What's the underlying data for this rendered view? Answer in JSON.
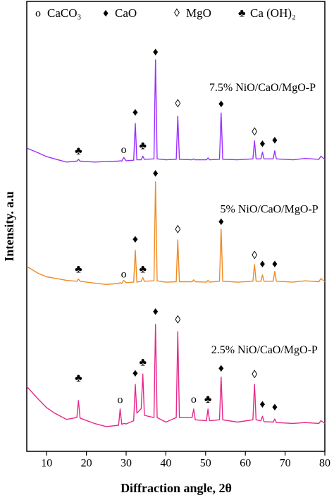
{
  "chart_data": {
    "type": "line",
    "xlabel": "Diffraction angle, 2θ",
    "ylabel": "Intensity. a.u",
    "xlim": [
      5,
      80
    ],
    "xticks": [
      10,
      20,
      30,
      40,
      50,
      60,
      70,
      80
    ],
    "ylim": [
      0,
      100
    ],
    "legend": [
      {
        "symbol": "o",
        "label": "CaCO₃"
      },
      {
        "symbol": "♦",
        "label": "CaO"
      },
      {
        "symbol": "◊",
        "label": "MgO"
      },
      {
        "symbol": "♣",
        "label": "Ca (OH)₂"
      }
    ],
    "x": [
      5,
      8,
      10,
      12,
      15,
      17.6,
      18,
      18.4,
      22,
      25,
      28.1,
      28.5,
      28.9,
      29.4,
      30,
      31.9,
      32.3,
      32.7,
      33.8,
      34.2,
      34.6,
      37.0,
      37.4,
      37.8,
      40,
      42.6,
      43,
      43.4,
      46.6,
      47,
      47.4,
      50.2,
      50.6,
      51,
      53.5,
      53.9,
      54.3,
      58,
      61.9,
      62.3,
      62.7,
      63.9,
      64.3,
      64.7,
      67.0,
      67.4,
      67.8,
      72,
      75,
      78.5,
      79,
      80
    ],
    "series": [
      {
        "name": "7.5% NiO/CaO/MgO-P",
        "color": "#9b30ff",
        "label_at": [
          64.3,
          80.7
        ],
        "values": [
          67.4,
          66.3,
          65.5,
          65.0,
          64.3,
          64.5,
          64.9,
          64.5,
          64.3,
          64.4,
          64.5,
          64.6,
          64.5,
          65.3,
          64.6,
          64.7,
          72.9,
          64.8,
          64.8,
          65.6,
          64.9,
          65.0,
          87.0,
          65.0,
          64.8,
          64.9,
          74.5,
          64.9,
          64.8,
          65.0,
          64.8,
          64.8,
          65.2,
          64.8,
          64.9,
          75.2,
          64.9,
          64.8,
          65.0,
          69.0,
          65.0,
          65.0,
          66.5,
          65.0,
          65.0,
          66.8,
          65.0,
          64.8,
          65.1,
          64.9,
          65.6,
          64.9
        ]
      },
      {
        "name": "5% NiO/CaO/MgO-P",
        "color": "#f08a24",
        "label_at": [
          66,
          53.6
        ],
        "values": [
          41.1,
          39.5,
          38.8,
          38.5,
          38.0,
          37.8,
          38.3,
          37.8,
          37.4,
          37.1,
          37.3,
          37.5,
          37.3,
          38.0,
          37.5,
          37.6,
          44.7,
          37.6,
          37.8,
          38.6,
          37.8,
          37.9,
          59.9,
          37.9,
          37.6,
          37.7,
          47.0,
          37.7,
          37.7,
          38.1,
          37.7,
          37.6,
          38.0,
          37.6,
          37.8,
          49.4,
          37.8,
          37.6,
          37.8,
          41.5,
          37.8,
          37.8,
          39.2,
          37.8,
          37.8,
          40.0,
          37.8,
          37.6,
          37.9,
          37.7,
          38.4,
          37.7
        ]
      },
      {
        "name": "2.5% NiO/CaO/MgO-P",
        "color": "#e8288a",
        "label_at": [
          64.8,
          22.4
        ],
        "values": [
          14.4,
          11.5,
          9.7,
          8.5,
          7.1,
          7.5,
          11.3,
          7.4,
          6.2,
          5.5,
          5.8,
          9.4,
          6.0,
          6.2,
          6.1,
          6.8,
          14.9,
          8.5,
          9.5,
          17.2,
          8.0,
          7.5,
          28.2,
          7.5,
          6.5,
          7.5,
          26.6,
          7.5,
          7.5,
          9.4,
          7.0,
          6.8,
          9.4,
          6.8,
          7.0,
          16.5,
          7.0,
          6.5,
          7.0,
          14.9,
          7.0,
          6.8,
          7.8,
          6.6,
          6.5,
          7.2,
          6.4,
          6.2,
          6.4,
          6.2,
          6.8,
          6.2
        ]
      }
    ],
    "annotations": [
      {
        "text": "♦",
        "x": 37.4,
        "y": 88.6
      },
      {
        "text": "♦",
        "x": 32.3,
        "y": 75.2
      },
      {
        "text": "◊",
        "x": 43,
        "y": 77.1
      },
      {
        "text": "♦",
        "x": 53.9,
        "y": 77.1
      },
      {
        "text": "◊",
        "x": 62.3,
        "y": 70.8
      },
      {
        "text": "♦",
        "x": 64.3,
        "y": 68.2
      },
      {
        "text": "♦",
        "x": 67.4,
        "y": 69.0
      },
      {
        "text": "♣",
        "x": 18,
        "y": 66.6
      },
      {
        "text": "o",
        "x": 29.4,
        "y": 66.9
      },
      {
        "text": "♣",
        "x": 34.2,
        "y": 67.7
      },
      {
        "text": "♦",
        "x": 37.4,
        "y": 61.6
      },
      {
        "text": "◊",
        "x": 43,
        "y": 49.1
      },
      {
        "text": "♦",
        "x": 32.3,
        "y": 47.0
      },
      {
        "text": "♦",
        "x": 53.9,
        "y": 50.9
      },
      {
        "text": "◊",
        "x": 62.3,
        "y": 43.4
      },
      {
        "text": "♦",
        "x": 64.3,
        "y": 41.5
      },
      {
        "text": "♦",
        "x": 67.4,
        "y": 41.5
      },
      {
        "text": "♣",
        "x": 18,
        "y": 40.3
      },
      {
        "text": "o",
        "x": 29.4,
        "y": 39.2
      },
      {
        "text": "♣",
        "x": 34.2,
        "y": 40.3
      },
      {
        "text": "♦",
        "x": 37.4,
        "y": 30.9
      },
      {
        "text": "◊",
        "x": 43,
        "y": 29.0
      },
      {
        "text": "♣",
        "x": 34.2,
        "y": 19.6
      },
      {
        "text": "♦",
        "x": 32.3,
        "y": 17.2
      },
      {
        "text": "♣",
        "x": 18,
        "y": 16.1
      },
      {
        "text": "o",
        "x": 28.5,
        "y": 11.3
      },
      {
        "text": "♦",
        "x": 53.9,
        "y": 18.3
      },
      {
        "text": "◊",
        "x": 62.3,
        "y": 16.9
      },
      {
        "text": "o",
        "x": 47,
        "y": 11.4
      },
      {
        "text": "♣",
        "x": 50.6,
        "y": 11.4
      },
      {
        "text": "♦",
        "x": 64.3,
        "y": 10.3
      },
      {
        "text": "♦",
        "x": 67.4,
        "y": 9.7
      }
    ]
  }
}
